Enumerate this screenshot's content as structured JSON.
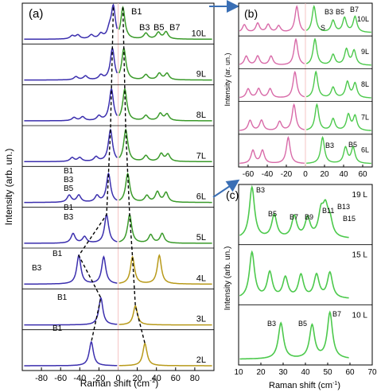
{
  "figure": {
    "panel_a": {
      "label": "(a)",
      "ylabel": "Intensity (arb. un.)",
      "xlabel": "Raman shift (cm",
      "xlabel_sup": "-1",
      "xlabel_end": ")",
      "mode_labels": [
        "B1",
        "B3",
        "B5",
        "B7"
      ]
    },
    "panel_b": {
      "label": "(b)",
      "ylabel": "Intensity (ar. un.)",
      "s_label": "S",
      "mode_labels_top": [
        "B3",
        "B5",
        "B7"
      ],
      "mode_labels_bottom": [
        "B3",
        "B5"
      ]
    },
    "panel_c": {
      "label": "(c)",
      "ylabel": "Intensity (arb. un.)",
      "xlabel": "Raman shift (cm",
      "xlabel_sup": "-1",
      "xlabel_end": ")",
      "mode_labels_19L": [
        "B3",
        "B5",
        "B7",
        "B9",
        "B11",
        "B13",
        "B15"
      ],
      "mode_labels_10L": [
        "B3",
        "B5",
        "B7"
      ]
    },
    "schematics": {
      "6L": [
        "B1",
        "B3",
        "B5"
      ],
      "5L": [
        "B1",
        "B3"
      ],
      "4L": [
        "B1",
        "B3"
      ],
      "3L": [
        "B1"
      ],
      "2L": [
        "B1"
      ]
    }
  },
  "chart_data": [
    {
      "type": "line",
      "panel": "(a)",
      "xlabel": "Raman shift (cm-1)",
      "ylabel": "Intensity (arb. un.)",
      "xlim": [
        -100,
        100
      ],
      "xticks": [
        -80,
        -60,
        -40,
        -20,
        0,
        20,
        40,
        60,
        80
      ],
      "series": [
        {
          "name": "10L",
          "stokes_peaks": [
            [
              -5,
              1.0
            ],
            [
              -9,
              0.25
            ],
            [
              -18,
              0.15
            ],
            [
              -28,
              0.12
            ],
            [
              -42,
              0.12
            ],
            [
              -48,
              0.1
            ]
          ],
          "antistokes_peaks": [
            [
              5,
              1.0
            ],
            [
              29,
              0.18
            ],
            [
              42,
              0.2
            ],
            [
              50,
              0.22
            ]
          ]
        },
        {
          "name": "9L",
          "stokes_peaks": [
            [
              -6,
              1.0
            ],
            [
              -18,
              0.14
            ],
            [
              -34,
              0.12
            ],
            [
              -44,
              0.1
            ]
          ],
          "antistokes_peaks": [
            [
              6,
              1.0
            ],
            [
              29,
              0.16
            ],
            [
              43,
              0.2
            ],
            [
              51,
              0.2
            ]
          ]
        },
        {
          "name": "8L",
          "stokes_peaks": [
            [
              -7,
              1.0
            ],
            [
              -20,
              0.14
            ],
            [
              -37,
              0.12
            ],
            [
              -46,
              0.1
            ]
          ],
          "antistokes_peaks": [
            [
              7,
              1.0
            ],
            [
              29,
              0.16
            ],
            [
              44,
              0.22
            ],
            [
              51,
              0.2
            ]
          ]
        },
        {
          "name": "7L",
          "stokes_peaks": [
            [
              -8,
              1.0
            ],
            [
              -23,
              0.14
            ],
            [
              -40,
              0.12
            ],
            [
              -48,
              0.12
            ]
          ],
          "antistokes_peaks": [
            [
              8,
              1.0
            ],
            [
              29,
              0.18
            ],
            [
              45,
              0.24
            ],
            [
              52,
              0.22
            ]
          ]
        },
        {
          "name": "6L",
          "stokes_peaks": [
            [
              -10,
              0.9
            ],
            [
              -22,
              0.2
            ],
            [
              -41,
              0.22
            ],
            [
              -51,
              0.22
            ]
          ],
          "antistokes_peaks": [
            [
              10,
              0.9
            ],
            [
              30,
              0.2
            ],
            [
              41,
              0.32
            ],
            [
              50,
              0.3
            ]
          ]
        },
        {
          "name": "5L",
          "stokes_peaks": [
            [
              -12,
              0.9
            ],
            [
              -35,
              0.2
            ],
            [
              -47,
              0.3
            ]
          ],
          "antistokes_peaks": [
            [
              12,
              0.9
            ],
            [
              34,
              0.26
            ],
            [
              46,
              0.3
            ]
          ]
        },
        {
          "name": "4L",
          "stokes_peaks": [
            [
              -15,
              0.85
            ],
            [
              -41,
              0.9
            ]
          ],
          "antistokes_peaks": [
            [
              15,
              0.85
            ],
            [
              43,
              0.9
            ]
          ]
        },
        {
          "name": "3L",
          "stokes_peaks": [
            [
              -18,
              0.85
            ]
          ],
          "antistokes_peaks": [
            [
              18,
              0.6
            ]
          ]
        },
        {
          "name": "2L",
          "stokes_peaks": [
            [
              -28,
              0.75
            ]
          ],
          "antistokes_peaks": [
            [
              28,
              0.7
            ]
          ]
        }
      ]
    },
    {
      "type": "line",
      "panel": "(b)",
      "xlabel": "",
      "ylabel": "Intensity (ar. un.)",
      "xlim": [
        -70,
        70
      ],
      "xticks": [
        -60,
        -40,
        -20,
        0,
        20,
        40,
        60
      ],
      "series": [
        {
          "name": "10L",
          "stokes_peaks": [
            [
              -64,
              0.3
            ],
            [
              -50,
              0.35
            ],
            [
              -39,
              0.3
            ],
            [
              -28,
              0.25
            ],
            [
              -9,
              1.0
            ]
          ],
          "antistokes_peaks": [
            [
              9,
              1.0
            ],
            [
              29,
              0.45
            ],
            [
              41,
              0.55
            ],
            [
              52,
              0.6
            ]
          ]
        },
        {
          "name": "9L",
          "stokes_peaks": [
            [
              -62,
              0.35
            ],
            [
              -50,
              0.35
            ],
            [
              -36,
              0.35
            ],
            [
              -10,
              1.0
            ]
          ],
          "antistokes_peaks": [
            [
              10,
              1.0
            ],
            [
              29,
              0.4
            ],
            [
              43,
              0.6
            ],
            [
              51,
              0.55
            ]
          ]
        },
        {
          "name": "8L",
          "stokes_peaks": [
            [
              -60,
              0.35
            ],
            [
              -49,
              0.35
            ],
            [
              -37,
              0.35
            ],
            [
              -11,
              1.0
            ]
          ],
          "antistokes_peaks": [
            [
              11,
              1.0
            ],
            [
              29,
              0.4
            ],
            [
              44,
              0.6
            ],
            [
              52,
              0.55
            ]
          ]
        },
        {
          "name": "7L",
          "stokes_peaks": [
            [
              -58,
              0.4
            ],
            [
              -46,
              0.4
            ],
            [
              -27,
              0.35
            ],
            [
              -12,
              1.0
            ]
          ],
          "antistokes_peaks": [
            [
              12,
              1.0
            ],
            [
              29,
              0.45
            ],
            [
              45,
              0.6
            ],
            [
              52,
              0.55
            ]
          ]
        },
        {
          "name": "6L",
          "stokes_peaks": [
            [
              -55,
              0.5
            ],
            [
              -45,
              0.5
            ],
            [
              -18,
              1.0
            ]
          ],
          "antistokes_peaks": [
            [
              18,
              1.0
            ],
            [
              42,
              0.6
            ],
            [
              50,
              0.6
            ]
          ]
        }
      ]
    },
    {
      "type": "line",
      "panel": "(c)",
      "xlabel": "Raman shift (cm-1)",
      "ylabel": "Intensity (arb. un.)",
      "xlim": [
        10,
        60
      ],
      "xticks": [
        10,
        20,
        30,
        40,
        50,
        60,
        70
      ],
      "series": [
        {
          "name": "19 L",
          "peaks": [
            [
              16,
              1.0
            ],
            [
              26,
              0.45
            ],
            [
              35,
              0.42
            ],
            [
              41,
              0.38
            ],
            [
              47,
              0.45
            ],
            [
              49,
              0.5
            ],
            [
              51,
              0.3
            ]
          ]
        },
        {
          "name": "15 L",
          "peaks": [
            [
              16,
              0.9
            ],
            [
              24,
              0.5
            ],
            [
              31,
              0.4
            ],
            [
              38,
              0.45
            ],
            [
              45,
              0.45
            ],
            [
              51,
              0.5
            ]
          ]
        },
        {
          "name": "10 L",
          "peaks": [
            [
              29,
              0.7
            ],
            [
              43,
              0.65
            ],
            [
              51,
              0.9
            ]
          ]
        }
      ]
    }
  ]
}
